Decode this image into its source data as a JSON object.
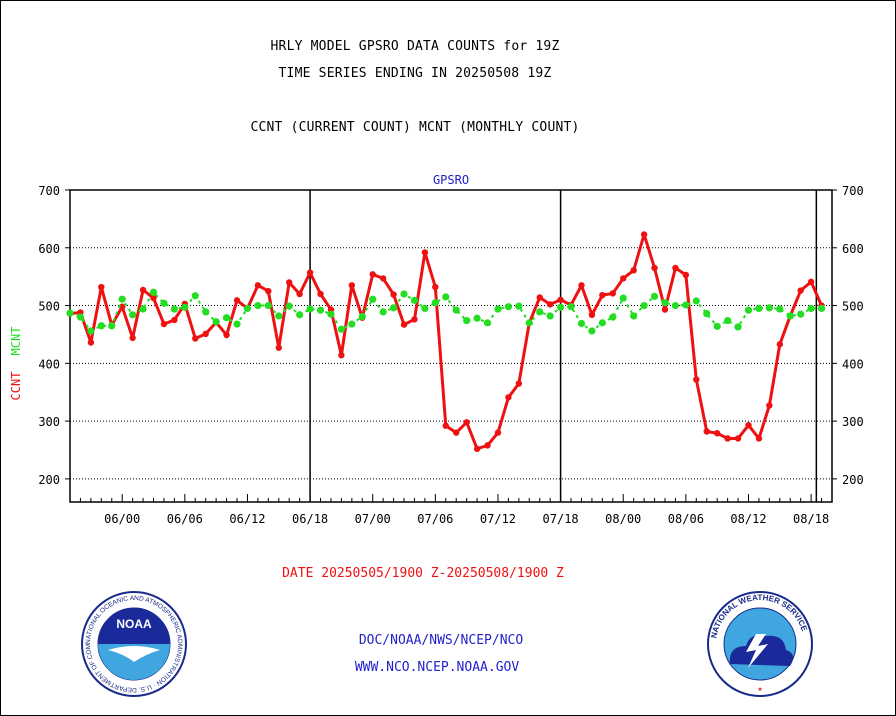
{
  "header": {
    "line1": "HRLY MODEL GPSRO DATA COUNTS for 19Z",
    "line2": "TIME SERIES ENDING IN 20250508 19Z",
    "line3": "CCNT (CURRENT COUNT) MCNT (MONTHLY COUNT)"
  },
  "footer": {
    "date_range": "DATE 20250505/1900 Z-20250508/1900 Z",
    "link1": "DOC/NOAA/NWS/NCEP/NCO",
    "link2": "WWW.NCO.NCEP.NOAA.GOV"
  },
  "logos": {
    "noaa_text": "NOAA",
    "noaa_ring": "NATIONAL OCEANIC AND ATMOSPHERIC ADMINISTRATION · U.S. DEPARTMENT OF COMMERCE ·",
    "nws_ring": "NATIONAL WEATHER SERVICE"
  },
  "colors": {
    "ccnt": "#ee1111",
    "mcnt": "#22dd22",
    "title": "#2222cc",
    "date": "#ee1111"
  },
  "chart_data": {
    "type": "line",
    "title": "GPSRO",
    "ylabel_ccnt": "CCNT",
    "ylabel_mcnt": "MCNT",
    "ylim": [
      160,
      700
    ],
    "yticks": [
      200,
      300,
      400,
      500,
      600,
      700
    ],
    "x_range": [
      0,
      73
    ],
    "x_tick_positions": [
      5,
      11,
      17,
      23,
      29,
      35,
      41,
      47,
      53,
      59,
      65,
      71
    ],
    "x_tick_labels": [
      "06/00",
      "06/06",
      "06/12",
      "06/18",
      "07/00",
      "07/06",
      "07/12",
      "07/18",
      "08/00",
      "08/06",
      "08/12",
      "08/18"
    ],
    "day_boundaries": [
      23,
      47,
      71.5
    ],
    "series": [
      {
        "name": "CCNT",
        "values": [
          486,
          488,
          436,
          532,
          466,
          498,
          444,
          527,
          513,
          468,
          475,
          503,
          443,
          451,
          471,
          449,
          509,
          495,
          535,
          525,
          427,
          540,
          520,
          557,
          520,
          493,
          414,
          535,
          479,
          554,
          547,
          519,
          467,
          476,
          592,
          532,
          292,
          280,
          298,
          252,
          258,
          280,
          341,
          365,
          470,
          514,
          502,
          510,
          501,
          535,
          484,
          518,
          521,
          547,
          561,
          623,
          565,
          493,
          565,
          553,
          372,
          282,
          279,
          270,
          270,
          293,
          270,
          327,
          433,
          482,
          526,
          541,
          500
        ]
      },
      {
        "name": "MCNT",
        "values": [
          487,
          480,
          456,
          465,
          465,
          511,
          484,
          494,
          523,
          504,
          494,
          497,
          517,
          489,
          472,
          479,
          468,
          495,
          500,
          500,
          482,
          499,
          484,
          494,
          492,
          485,
          459,
          468,
          481,
          511,
          489,
          496,
          520,
          509,
          495,
          505,
          515,
          492,
          474,
          478,
          470,
          494,
          498,
          499,
          470,
          489,
          482,
          497,
          498,
          469,
          456,
          470,
          480,
          513,
          482,
          500,
          516,
          505,
          500,
          501,
          508,
          486,
          464,
          474,
          463,
          492,
          495,
          496,
          494,
          482,
          485,
          495,
          495
        ]
      }
    ]
  }
}
